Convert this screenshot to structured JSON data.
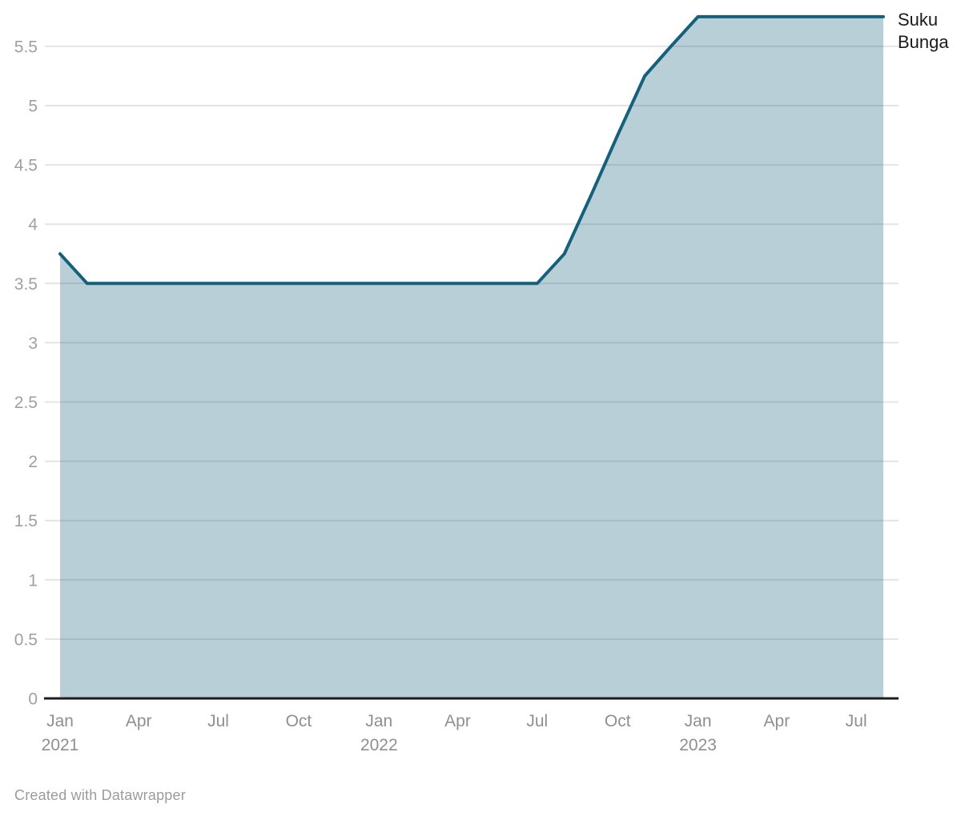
{
  "chart": {
    "series_label": "Suku Bunga"
  },
  "footer": {
    "credit": "Created with Datawrapper"
  },
  "chart_data": {
    "type": "area",
    "title": "Suku Bunga",
    "legend_position": "right-end",
    "grid": true,
    "ylim": [
      0,
      5.75
    ],
    "colors": {
      "line": "#15607a",
      "fill": "rgba(21, 96, 122, 0.3)",
      "grid": "#e4e4e4",
      "axis": "#1d1d1d",
      "y_tick_text": "#a0a0a0",
      "x_tick_text": "#8f8f8f",
      "label_text": "#1a1a1a"
    },
    "series": [
      {
        "name": "Suku Bunga",
        "x": [
          "2021-01",
          "2021-02",
          "2021-03",
          "2021-04",
          "2021-05",
          "2021-06",
          "2021-07",
          "2021-08",
          "2021-09",
          "2021-10",
          "2021-11",
          "2021-12",
          "2022-01",
          "2022-02",
          "2022-03",
          "2022-04",
          "2022-05",
          "2022-06",
          "2022-07",
          "2022-08",
          "2022-09",
          "2022-10",
          "2022-11",
          "2022-12",
          "2023-01",
          "2023-02",
          "2023-03",
          "2023-04",
          "2023-05",
          "2023-06",
          "2023-07",
          "2023-08"
        ],
        "values": [
          3.75,
          3.5,
          3.5,
          3.5,
          3.5,
          3.5,
          3.5,
          3.5,
          3.5,
          3.5,
          3.5,
          3.5,
          3.5,
          3.5,
          3.5,
          3.5,
          3.5,
          3.5,
          3.5,
          3.75,
          4.25,
          4.75,
          5.25,
          5.5,
          5.75,
          5.75,
          5.75,
          5.75,
          5.75,
          5.75,
          5.75,
          5.75
        ]
      }
    ],
    "x_ticks": [
      {
        "x": "2021-01",
        "label": "Jan",
        "year": "2021"
      },
      {
        "x": "2021-04",
        "label": "Apr"
      },
      {
        "x": "2021-07",
        "label": "Jul"
      },
      {
        "x": "2021-10",
        "label": "Oct"
      },
      {
        "x": "2022-01",
        "label": "Jan",
        "year": "2022"
      },
      {
        "x": "2022-04",
        "label": "Apr"
      },
      {
        "x": "2022-07",
        "label": "Jul"
      },
      {
        "x": "2022-10",
        "label": "Oct"
      },
      {
        "x": "2023-01",
        "label": "Jan",
        "year": "2023"
      },
      {
        "x": "2023-04",
        "label": "Apr"
      },
      {
        "x": "2023-07",
        "label": "Jul"
      }
    ],
    "y_ticks": [
      {
        "v": 0,
        "label": "0"
      },
      {
        "v": 0.5,
        "label": "0.5"
      },
      {
        "v": 1,
        "label": "1"
      },
      {
        "v": 1.5,
        "label": "1.5"
      },
      {
        "v": 2,
        "label": "2"
      },
      {
        "v": 2.5,
        "label": "2.5"
      },
      {
        "v": 3,
        "label": "3"
      },
      {
        "v": 3.5,
        "label": "3.5"
      },
      {
        "v": 4,
        "label": "4"
      },
      {
        "v": 4.5,
        "label": "4.5"
      },
      {
        "v": 5,
        "label": "5"
      },
      {
        "v": 5.5,
        "label": "5.5"
      }
    ]
  }
}
